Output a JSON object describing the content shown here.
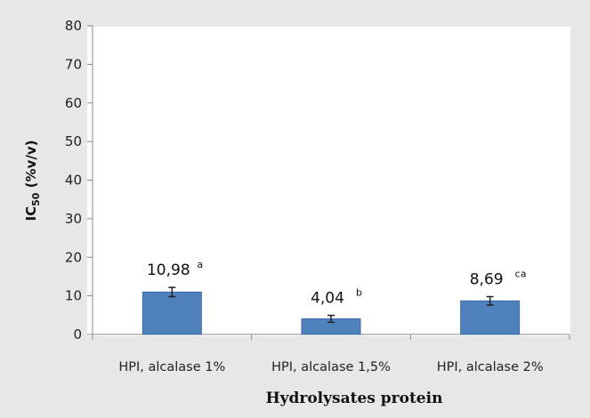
{
  "chart_data": {
    "type": "bar",
    "categories": [
      "HPI, alcalase 1%",
      "HPI, alcalase 1,5%",
      "HPI, alcalase 2%"
    ],
    "values": [
      10.98,
      4.04,
      8.69
    ],
    "error": [
      1.2,
      0.9,
      1.1
    ],
    "value_labels": [
      "10,98",
      "4,04",
      "8,69"
    ],
    "superscripts": [
      "a",
      "b",
      "ca"
    ],
    "xlabel": "Hydrolysates protein",
    "ylabel_main": "IC",
    "ylabel_sub": "50",
    "ylabel_unit": " (%v/v)",
    "ylim": [
      0,
      80
    ],
    "yticks": [
      0,
      10,
      20,
      30,
      40,
      50,
      60,
      70,
      80
    ],
    "grid": false,
    "colors": {
      "bar": "#4f81bd",
      "bar_edge": "#3b6aa3",
      "axis": "#888888"
    }
  }
}
